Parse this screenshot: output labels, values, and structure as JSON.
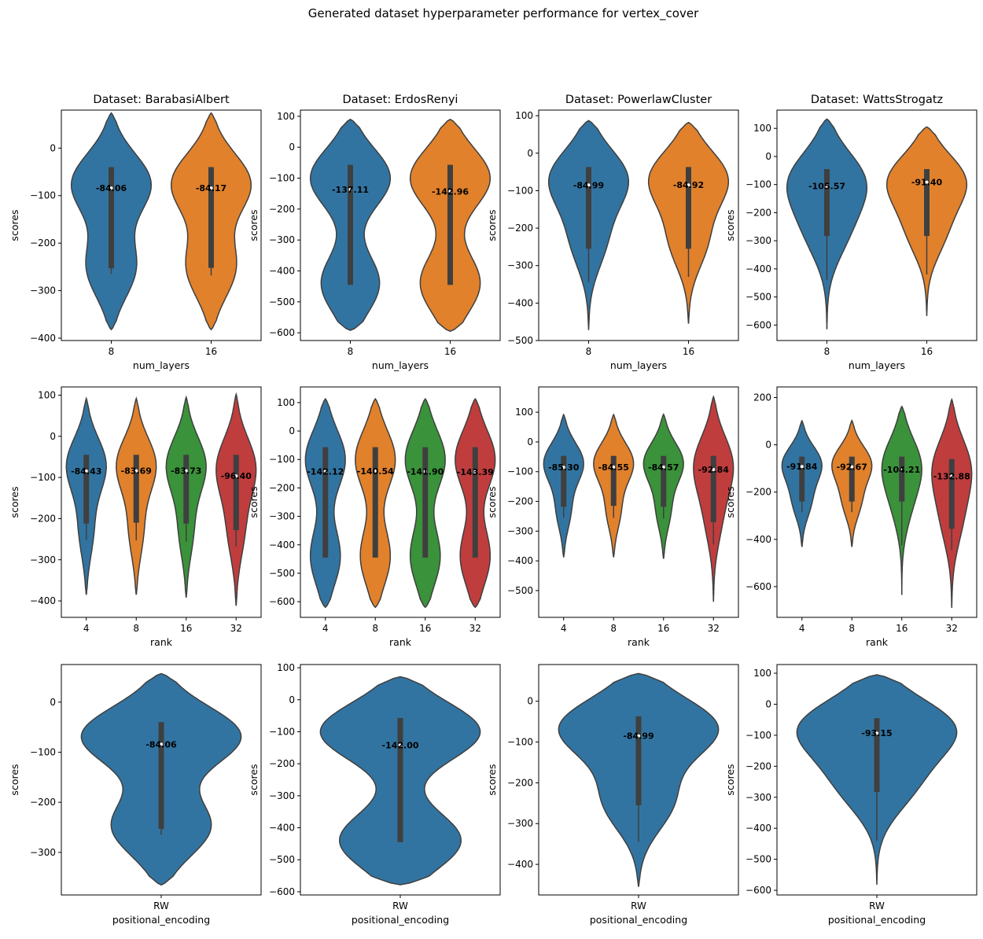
{
  "suptitle": "Generated dataset hyperparameter performance for vertex_cover",
  "colors": {
    "palette": [
      "#3274a1",
      "#e1812c",
      "#3a923a",
      "#c03d3e"
    ],
    "outline": "#3f3f3f",
    "box": "#3f3f3f"
  },
  "chart_data": [
    {
      "type": "violin",
      "title": "Dataset: BarabasiAlbert",
      "xlabel": "num_layers",
      "ylabel": "scores",
      "yticks": [
        0,
        -100,
        -200,
        -300,
        -400
      ],
      "ylim": [
        -405,
        80
      ],
      "categories": [
        "8",
        "16"
      ],
      "violins": [
        {
          "median": -84.06,
          "label": "-84.06",
          "q1": -253,
          "q3": -40,
          "wmin": -265,
          "wmax": -40,
          "min": -382,
          "max": 74,
          "modes": [
            [
              -75,
              1
            ],
            [
              -250,
              0.62
            ]
          ]
        },
        {
          "median": -84.17,
          "label": "-84.17",
          "q1": -252,
          "q3": -40,
          "wmin": -268,
          "wmax": -40,
          "min": -382,
          "max": 74,
          "modes": [
            [
              -75,
              1
            ],
            [
              -250,
              0.62
            ]
          ]
        }
      ]
    },
    {
      "type": "violin",
      "title": "Dataset: ErdosRenyi",
      "xlabel": "num_layers",
      "ylabel": "scores",
      "yticks": [
        100,
        0,
        -100,
        -200,
        -300,
        -400,
        -500,
        -600
      ],
      "ylim": [
        -625,
        120
      ],
      "categories": [
        "8",
        "16"
      ],
      "violins": [
        {
          "median": -137.11,
          "label": "-137.11",
          "q1": -445,
          "q3": -57,
          "wmin": -445,
          "wmax": -57,
          "min": -592,
          "max": 90,
          "modes": [
            [
              -100,
              1
            ],
            [
              -440,
              0.73
            ]
          ]
        },
        {
          "median": -142.96,
          "label": "-142.96",
          "q1": -445,
          "q3": -57,
          "wmin": -445,
          "wmax": -57,
          "min": -595,
          "max": 90,
          "modes": [
            [
              -100,
              1
            ],
            [
              -440,
              0.75
            ]
          ]
        }
      ]
    },
    {
      "type": "violin",
      "title": "Dataset: PowerlawCluster",
      "xlabel": "num_layers",
      "ylabel": "scores",
      "yticks": [
        100,
        0,
        -100,
        -200,
        -300,
        -400,
        -500
      ],
      "ylim": [
        -500,
        115
      ],
      "categories": [
        "8",
        "16"
      ],
      "violins": [
        {
          "median": -84.99,
          "label": "-84.99",
          "q1": -255,
          "q3": -37,
          "wmin": -345,
          "wmax": -37,
          "min": -472,
          "max": 87,
          "modes": [
            [
              -68,
              1
            ],
            [
              -235,
              0.42
            ]
          ]
        },
        {
          "median": -84.92,
          "label": "-84.92",
          "q1": -255,
          "q3": -37,
          "wmin": -330,
          "wmax": -37,
          "min": -455,
          "max": 82,
          "modes": [
            [
              -68,
              1
            ],
            [
              -235,
              0.46
            ]
          ]
        }
      ]
    },
    {
      "type": "violin",
      "title": "Dataset: WattsStrogatz",
      "xlabel": "num_layers",
      "ylabel": "scores",
      "yticks": [
        100,
        0,
        -100,
        -200,
        -300,
        -400,
        -500,
        -600
      ],
      "ylim": [
        -655,
        165
      ],
      "categories": [
        "8",
        "16"
      ],
      "violins": [
        {
          "median": -105.57,
          "label": "-105.57",
          "q1": -283,
          "q3": -45,
          "wmin": -440,
          "wmax": -45,
          "min": -615,
          "max": 133,
          "modes": [
            [
              -85,
              1
            ],
            [
              -270,
              0.5
            ]
          ]
        },
        {
          "median": -91.4,
          "label": "-91.40",
          "q1": -283,
          "q3": -45,
          "wmin": -420,
          "wmax": -45,
          "min": -568,
          "max": 105,
          "modes": [
            [
              -85,
              1
            ],
            [
              -270,
              0.45
            ]
          ]
        }
      ]
    },
    {
      "type": "violin",
      "title": "",
      "xlabel": "rank",
      "ylabel": "scores",
      "yticks": [
        100,
        0,
        -100,
        -200,
        -300,
        -400
      ],
      "ylim": [
        -440,
        120
      ],
      "categories": [
        "4",
        "8",
        "16",
        "32"
      ],
      "violins": [
        {
          "median": -84.43,
          "label": "-84.43",
          "q1": -212,
          "q3": -45,
          "wmin": -252,
          "wmax": -45,
          "min": -385,
          "max": 92,
          "modes": [
            [
              -70,
              1
            ],
            [
              -230,
              0.35
            ]
          ]
        },
        {
          "median": -83.69,
          "label": "-83.69",
          "q1": -210,
          "q3": -45,
          "wmin": -253,
          "wmax": -45,
          "min": -385,
          "max": 92,
          "modes": [
            [
              -70,
              1
            ],
            [
              -230,
              0.35
            ]
          ]
        },
        {
          "median": -83.73,
          "label": "-83.73",
          "q1": -212,
          "q3": -45,
          "wmin": -256,
          "wmax": -45,
          "min": -392,
          "max": 95,
          "modes": [
            [
              -70,
              1
            ],
            [
              -230,
              0.35
            ]
          ]
        },
        {
          "median": -96.4,
          "label": "-96.40",
          "q1": -228,
          "q3": -45,
          "wmin": -268,
          "wmax": -45,
          "min": -412,
          "max": 102,
          "modes": [
            [
              -75,
              1
            ],
            [
              -230,
              0.4
            ]
          ]
        }
      ]
    },
    {
      "type": "violin",
      "title": "",
      "xlabel": "rank",
      "ylabel": "scores",
      "yticks": [
        100,
        0,
        -100,
        -200,
        -300,
        -400,
        -500,
        -600
      ],
      "ylim": [
        -655,
        155
      ],
      "categories": [
        "4",
        "8",
        "16",
        "32"
      ],
      "violins": [
        {
          "median": -142.12,
          "label": "-142.12",
          "q1": -445,
          "q3": -57,
          "wmin": -445,
          "wmax": -57,
          "min": -620,
          "max": 113,
          "modes": [
            [
              -100,
              1
            ],
            [
              -440,
              0.75
            ]
          ]
        },
        {
          "median": -140.54,
          "label": "-140.54",
          "q1": -445,
          "q3": -57,
          "wmin": -445,
          "wmax": -57,
          "min": -620,
          "max": 113,
          "modes": [
            [
              -100,
              1
            ],
            [
              -440,
              0.75
            ]
          ]
        },
        {
          "median": -141.9,
          "label": "-141.90",
          "q1": -445,
          "q3": -57,
          "wmin": -445,
          "wmax": -57,
          "min": -620,
          "max": 113,
          "modes": [
            [
              -100,
              1
            ],
            [
              -440,
              0.75
            ]
          ]
        },
        {
          "median": -143.39,
          "label": "-143.39",
          "q1": -445,
          "q3": -57,
          "wmin": -445,
          "wmax": -57,
          "min": -620,
          "max": 113,
          "modes": [
            [
              -100,
              1
            ],
            [
              -440,
              0.75
            ]
          ]
        }
      ]
    },
    {
      "type": "violin",
      "title": "",
      "xlabel": "rank",
      "ylabel": "scores",
      "yticks": [
        100,
        0,
        -100,
        -200,
        -300,
        -400,
        -500
      ],
      "ylim": [
        -590,
        185
      ],
      "categories": [
        "4",
        "8",
        "16",
        "32"
      ],
      "violins": [
        {
          "median": -85.3,
          "label": "-85.30",
          "q1": -218,
          "q3": -47,
          "wmin": -255,
          "wmax": -47,
          "min": -388,
          "max": 92,
          "modes": [
            [
              -70,
              1
            ],
            [
              -230,
              0.35
            ]
          ]
        },
        {
          "median": -84.55,
          "label": "-84.55",
          "q1": -215,
          "q3": -47,
          "wmin": -255,
          "wmax": -47,
          "min": -388,
          "max": 92,
          "modes": [
            [
              -70,
              1
            ],
            [
              -230,
              0.35
            ]
          ]
        },
        {
          "median": -84.57,
          "label": "-84.57",
          "q1": -218,
          "q3": -47,
          "wmin": -258,
          "wmax": -47,
          "min": -393,
          "max": 93,
          "modes": [
            [
              -70,
              1
            ],
            [
              -230,
              0.35
            ]
          ]
        },
        {
          "median": -92.84,
          "label": "-92.84",
          "q1": -270,
          "q3": -47,
          "wmin": -345,
          "wmax": -47,
          "min": -538,
          "max": 152,
          "modes": [
            [
              -75,
              1
            ],
            [
              -260,
              0.38
            ]
          ]
        }
      ]
    },
    {
      "type": "violin",
      "title": "",
      "xlabel": "rank",
      "ylabel": "scores",
      "yticks": [
        200,
        0,
        -200,
        -400,
        -600
      ],
      "ylim": [
        -730,
        245
      ],
      "categories": [
        "4",
        "8",
        "16",
        "32"
      ],
      "violins": [
        {
          "median": -91.84,
          "label": "-91.84",
          "q1": -240,
          "q3": -50,
          "wmin": -285,
          "wmax": -50,
          "min": -432,
          "max": 102,
          "modes": [
            [
              -80,
              1
            ],
            [
              -240,
              0.45
            ]
          ]
        },
        {
          "median": -92.67,
          "label": "-92.67",
          "q1": -240,
          "q3": -50,
          "wmin": -285,
          "wmax": -50,
          "min": -432,
          "max": 103,
          "modes": [
            [
              -80,
              1
            ],
            [
              -240,
              0.45
            ]
          ]
        },
        {
          "median": -104.21,
          "label": "-104.21",
          "q1": -240,
          "q3": -50,
          "wmin": -425,
          "wmax": -50,
          "min": -635,
          "max": 162,
          "modes": [
            [
              -80,
              1
            ],
            [
              -260,
              0.4
            ]
          ]
        },
        {
          "median": -132.88,
          "label": "-132.88",
          "q1": -355,
          "q3": -60,
          "wmin": -445,
          "wmax": -60,
          "min": -690,
          "max": 192,
          "modes": [
            [
              -95,
              1
            ],
            [
              -320,
              0.5
            ]
          ]
        }
      ]
    },
    {
      "type": "violin",
      "title": "",
      "xlabel": "positional_encoding",
      "ylabel": "scores",
      "yticks": [
        0,
        -100,
        -200,
        -300
      ],
      "ylim": [
        -385,
        75
      ],
      "categories": [
        "RW"
      ],
      "violins": [
        {
          "median": -84.06,
          "label": "-84.06",
          "q1": -253,
          "q3": -40,
          "wmin": -265,
          "wmax": -40,
          "min": -365,
          "max": 57,
          "modes": [
            [
              -68,
              1
            ],
            [
              -248,
              0.62
            ]
          ]
        }
      ]
    },
    {
      "type": "violin",
      "title": "",
      "xlabel": "positional_encoding",
      "ylabel": "scores",
      "yticks": [
        100,
        0,
        -100,
        -200,
        -300,
        -400,
        -500,
        -600
      ],
      "ylim": [
        -610,
        110
      ],
      "categories": [
        "RW"
      ],
      "violins": [
        {
          "median": -142.0,
          "label": "-142.00",
          "q1": -445,
          "q3": -57,
          "wmin": -445,
          "wmax": -57,
          "min": -578,
          "max": 72,
          "modes": [
            [
              -100,
              1
            ],
            [
              -440,
              0.76
            ]
          ]
        }
      ]
    },
    {
      "type": "violin",
      "title": "",
      "xlabel": "positional_encoding",
      "ylabel": "scores",
      "yticks": [
        0,
        -100,
        -200,
        -300,
        -400
      ],
      "ylim": [
        -475,
        90
      ],
      "categories": [
        "RW"
      ],
      "violins": [
        {
          "median": -84.99,
          "label": "-84.99",
          "q1": -255,
          "q3": -37,
          "wmin": -345,
          "wmax": -37,
          "min": -455,
          "max": 68,
          "modes": [
            [
              -65,
              1
            ],
            [
              -245,
              0.43
            ]
          ]
        }
      ]
    },
    {
      "type": "violin",
      "title": "",
      "xlabel": "positional_encoding",
      "ylabel": "scores",
      "yticks": [
        100,
        0,
        -100,
        -200,
        -300,
        -400,
        -500,
        -600
      ],
      "ylim": [
        -615,
        128
      ],
      "categories": [
        "RW"
      ],
      "violins": [
        {
          "median": -93.15,
          "label": "-93.15",
          "q1": -283,
          "q3": -45,
          "wmin": -440,
          "wmax": -45,
          "min": -582,
          "max": 95,
          "modes": [
            [
              -75,
              1
            ],
            [
              -260,
              0.45
            ]
          ]
        }
      ]
    }
  ]
}
